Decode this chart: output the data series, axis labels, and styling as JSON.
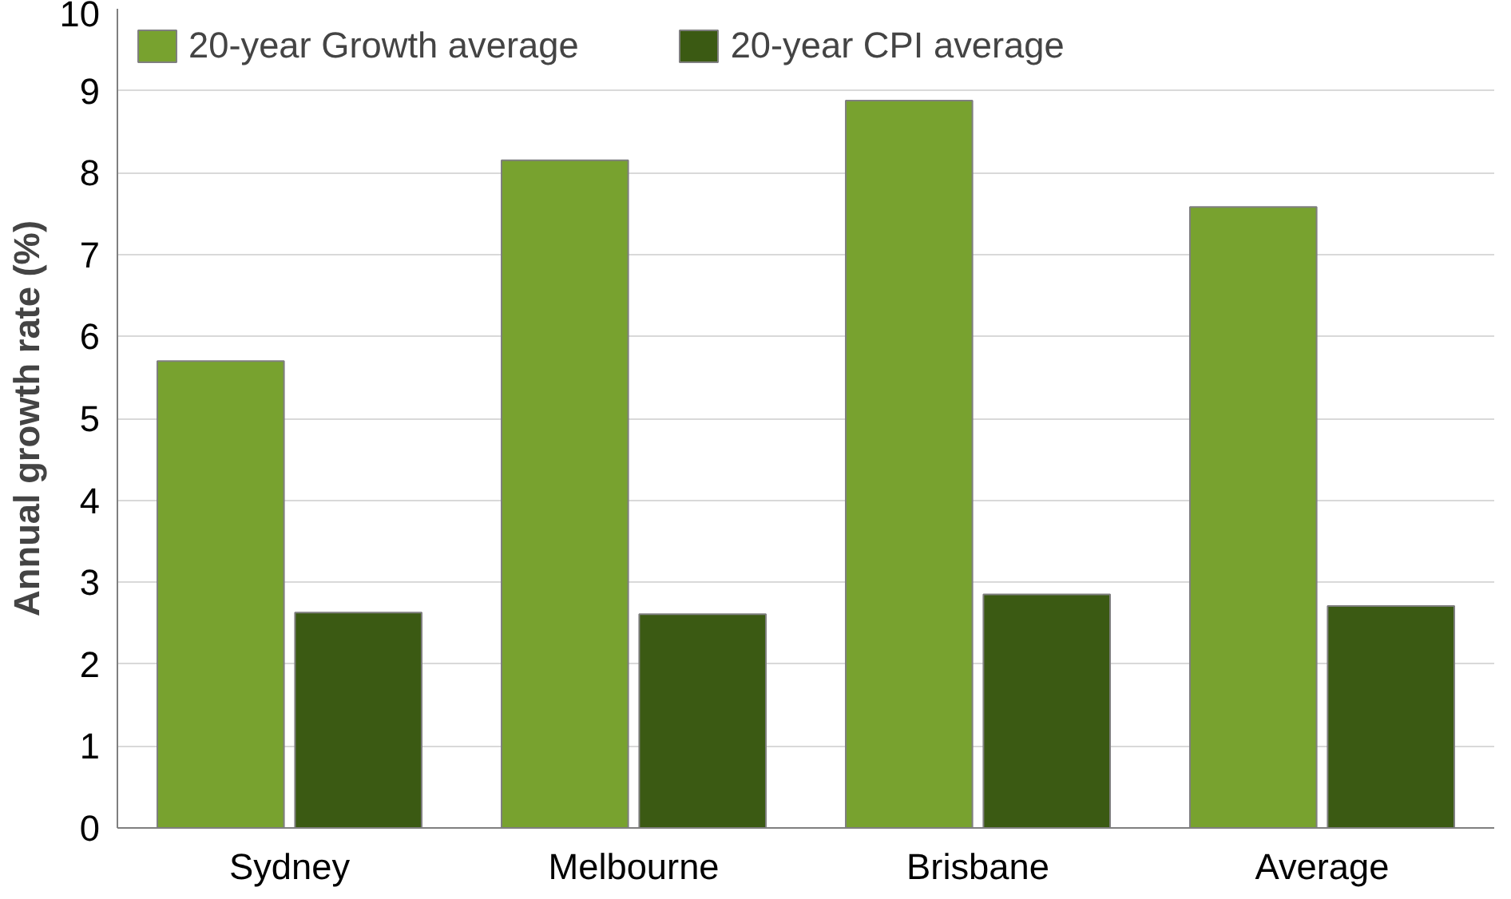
{
  "chart_data": {
    "type": "bar",
    "ylabel": "Annual growth rate (%)",
    "categories": [
      "Sydney",
      "Melbourne",
      "Brisbane",
      "Average"
    ],
    "series": [
      {
        "name": "20-year Growth average",
        "color": "#78a22f",
        "values": [
          5.7,
          8.15,
          8.88,
          7.58
        ]
      },
      {
        "name": "20-year CPI average",
        "color": "#3b5a13",
        "values": [
          2.63,
          2.61,
          2.85,
          2.71
        ]
      }
    ],
    "ylim": [
      0,
      10
    ],
    "yticks": [
      0,
      1,
      2,
      3,
      4,
      5,
      6,
      7,
      8,
      9,
      10
    ],
    "grid": "y",
    "legend": "top left"
  }
}
